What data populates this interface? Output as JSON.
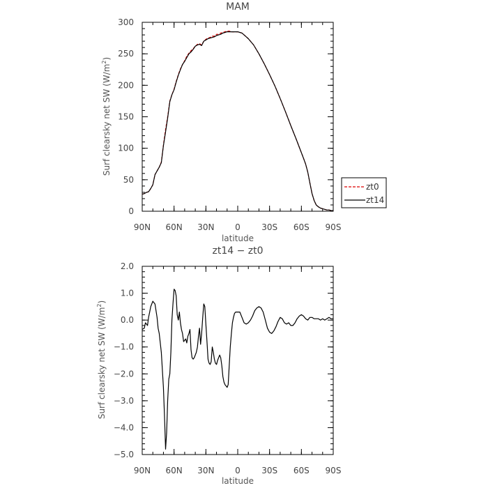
{
  "chart_data": [
    {
      "type": "line",
      "title": "MAM",
      "xlabel": "latitude",
      "ylabel": "Surf clearsky net SW (W/m²)",
      "ylabel_main": "Surf clearsky net SW (W/m",
      "ylabel_sup": "2",
      "ylabel_tail": ")",
      "xlim": [
        90,
        -90
      ],
      "ylim": [
        0,
        300
      ],
      "xticks": [
        90,
        60,
        30,
        0,
        -30,
        -60,
        -90
      ],
      "xtick_labels": [
        "90N",
        "60N",
        "30N",
        "0",
        "30S",
        "60S",
        "90S"
      ],
      "yticks": [
        0,
        50,
        100,
        150,
        200,
        250,
        300
      ],
      "ytick_labels": [
        "0",
        "50",
        "100",
        "150",
        "200",
        "250",
        "300"
      ],
      "legend": "right, outside plot",
      "series": [
        {
          "name": "zt0",
          "color": "#dd0000",
          "dashed": true,
          "x": [
            90,
            88,
            86,
            84,
            82,
            80,
            78,
            76,
            74,
            72,
            70,
            68,
            66,
            64,
            62,
            60,
            58,
            56,
            54,
            52,
            50,
            48,
            46,
            44,
            42,
            40,
            38,
            36,
            34,
            32,
            30,
            28,
            26,
            24,
            22,
            20,
            18,
            16,
            14,
            12,
            10,
            8,
            6,
            4,
            2,
            0,
            -2,
            -4,
            -6,
            -8,
            -10,
            -15,
            -20,
            -25,
            -30,
            -35,
            -40,
            -45,
            -50,
            -55,
            -60,
            -62,
            -64,
            -66,
            -68,
            -70,
            -72,
            -74,
            -76,
            -78,
            -80,
            -82,
            -84,
            -86,
            -88,
            -90
          ],
          "y": [
            27,
            28,
            30,
            31,
            36,
            42,
            58,
            64,
            70,
            78,
            105,
            130,
            150,
            175,
            185,
            194,
            206,
            217,
            226,
            233,
            239,
            246,
            251,
            255,
            258,
            262,
            265,
            266,
            264,
            270,
            273,
            275,
            276,
            278,
            278,
            281,
            281,
            283,
            284,
            285,
            286,
            286,
            285,
            285,
            285,
            285,
            284,
            283,
            280,
            277,
            274,
            264,
            250,
            234,
            217,
            199,
            179,
            158,
            136,
            115,
            93,
            84,
            75,
            62,
            45,
            28,
            17,
            10,
            7,
            5,
            4,
            3,
            2,
            2,
            1,
            1
          ]
        },
        {
          "name": "zt14",
          "color": "#000000",
          "dashed": false,
          "x": [
            90,
            88,
            86,
            84,
            82,
            80,
            78,
            76,
            74,
            72,
            70,
            68,
            66,
            64,
            62,
            60,
            58,
            56,
            54,
            52,
            50,
            48,
            46,
            44,
            42,
            40,
            38,
            36,
            34,
            32,
            30,
            28,
            26,
            24,
            22,
            20,
            18,
            16,
            14,
            12,
            10,
            8,
            6,
            4,
            2,
            0,
            -2,
            -4,
            -6,
            -8,
            -10,
            -15,
            -20,
            -25,
            -30,
            -35,
            -40,
            -45,
            -50,
            -55,
            -60,
            -62,
            -64,
            -66,
            -68,
            -70,
            -72,
            -74,
            -76,
            -78,
            -80,
            -82,
            -84,
            -86,
            -88,
            -90
          ],
          "y": [
            27,
            28,
            30,
            31,
            36,
            42,
            58,
            64,
            70,
            77,
            104,
            126,
            148,
            174,
            185,
            193,
            205,
            216,
            225,
            233,
            238,
            244,
            250,
            253,
            257,
            262,
            264,
            265,
            263,
            270,
            272,
            274,
            275,
            276,
            277,
            279,
            280,
            281,
            283,
            284,
            285,
            285,
            285,
            285,
            285,
            285,
            284,
            283,
            280,
            277,
            274,
            264,
            250,
            234,
            217,
            199,
            179,
            158,
            136,
            115,
            93,
            84,
            75,
            62,
            45,
            28,
            17,
            10,
            7,
            5,
            4,
            3,
            2,
            2,
            1,
            1
          ]
        }
      ]
    },
    {
      "type": "line",
      "title": "zt14 − zt0",
      "xlabel": "latitude",
      "ylabel": "Surf clearsky net SW (W/m²)",
      "ylabel_main": "Surf clearsky net SW (W/m",
      "ylabel_sup": "2",
      "ylabel_tail": ")",
      "xlim": [
        90,
        -90
      ],
      "ylim": [
        -5,
        2
      ],
      "xticks": [
        90,
        60,
        30,
        0,
        -30,
        -60,
        -90
      ],
      "xtick_labels": [
        "90N",
        "60N",
        "30N",
        "0",
        "30S",
        "60S",
        "90S"
      ],
      "yticks": [
        2,
        1,
        0,
        -1,
        -2,
        -3,
        -4,
        -5
      ],
      "ytick_labels": [
        "2.0",
        "1.0",
        "0.0",
        "−1.0",
        "−2.0",
        "−3.0",
        "−4.0",
        "−5.0"
      ],
      "series": [
        {
          "color": "#000000",
          "dashed": false,
          "x": [
            90,
            88,
            87,
            86,
            85,
            84,
            83,
            82,
            80,
            78,
            76,
            75,
            74,
            72,
            70,
            69,
            68,
            67,
            66,
            65,
            64,
            63,
            62,
            61,
            60,
            59,
            58,
            57,
            56,
            55,
            54,
            53,
            52,
            51,
            50,
            49,
            48,
            47,
            46,
            45,
            44,
            43,
            42,
            41,
            40,
            39,
            38,
            37,
            36,
            35,
            34,
            33,
            32,
            31,
            30,
            29,
            28,
            27,
            26,
            25,
            24,
            23,
            22,
            21,
            20,
            19,
            18,
            17,
            16,
            15,
            14,
            13,
            12,
            11,
            10,
            9,
            8,
            7,
            6,
            5,
            4,
            3,
            2,
            1,
            0,
            -2,
            -4,
            -6,
            -8,
            -10,
            -12,
            -14,
            -16,
            -18,
            -20,
            -22,
            -24,
            -26,
            -28,
            -30,
            -32,
            -34,
            -36,
            -38,
            -40,
            -42,
            -44,
            -46,
            -48,
            -50,
            -52,
            -54,
            -56,
            -58,
            -60,
            -62,
            -64,
            -66,
            -68,
            -70,
            -72,
            -74,
            -76,
            -78,
            -80,
            -82,
            -84,
            -86,
            -88,
            -90
          ],
          "y": [
            -0.35,
            -0.3,
            -0.1,
            -0.15,
            -0.2,
            0.1,
            0.3,
            0.5,
            0.7,
            0.6,
            0.1,
            -0.3,
            -0.5,
            -1.2,
            -2.5,
            -3.6,
            -4.8,
            -4.2,
            -3.0,
            -2.2,
            -2.0,
            -1.2,
            0.0,
            0.6,
            1.15,
            1.1,
            0.9,
            0.2,
            0.0,
            0.3,
            -0.1,
            -0.35,
            -0.5,
            -0.8,
            -0.75,
            -0.7,
            -0.85,
            -0.6,
            -0.5,
            -0.35,
            -1.1,
            -1.4,
            -1.45,
            -1.4,
            -1.3,
            -1.2,
            -1.0,
            -0.6,
            -0.3,
            -0.9,
            -0.5,
            0.1,
            0.6,
            0.5,
            -0.15,
            -0.8,
            -1.45,
            -1.6,
            -1.65,
            -1.55,
            -1.0,
            -1.2,
            -1.45,
            -1.6,
            -1.65,
            -1.5,
            -1.4,
            -1.3,
            -1.4,
            -1.7,
            -2.1,
            -2.3,
            -2.4,
            -2.45,
            -2.5,
            -2.4,
            -1.7,
            -1.0,
            -0.5,
            -0.1,
            0.1,
            0.25,
            0.3,
            0.3,
            0.3,
            0.3,
            0.1,
            -0.1,
            -0.15,
            -0.1,
            0.0,
            0.15,
            0.35,
            0.45,
            0.5,
            0.45,
            0.3,
            0.0,
            -0.3,
            -0.45,
            -0.5,
            -0.4,
            -0.25,
            -0.05,
            0.1,
            0.05,
            -0.1,
            -0.15,
            -0.1,
            -0.2,
            -0.2,
            -0.1,
            0.05,
            0.15,
            0.2,
            0.15,
            0.05,
            0.0,
            0.1,
            0.1,
            0.05,
            0.05,
            0.05,
            0.0,
            0.05,
            0.0,
            0.05,
            0.1,
            0.05,
            0.05
          ]
        }
      ]
    }
  ]
}
